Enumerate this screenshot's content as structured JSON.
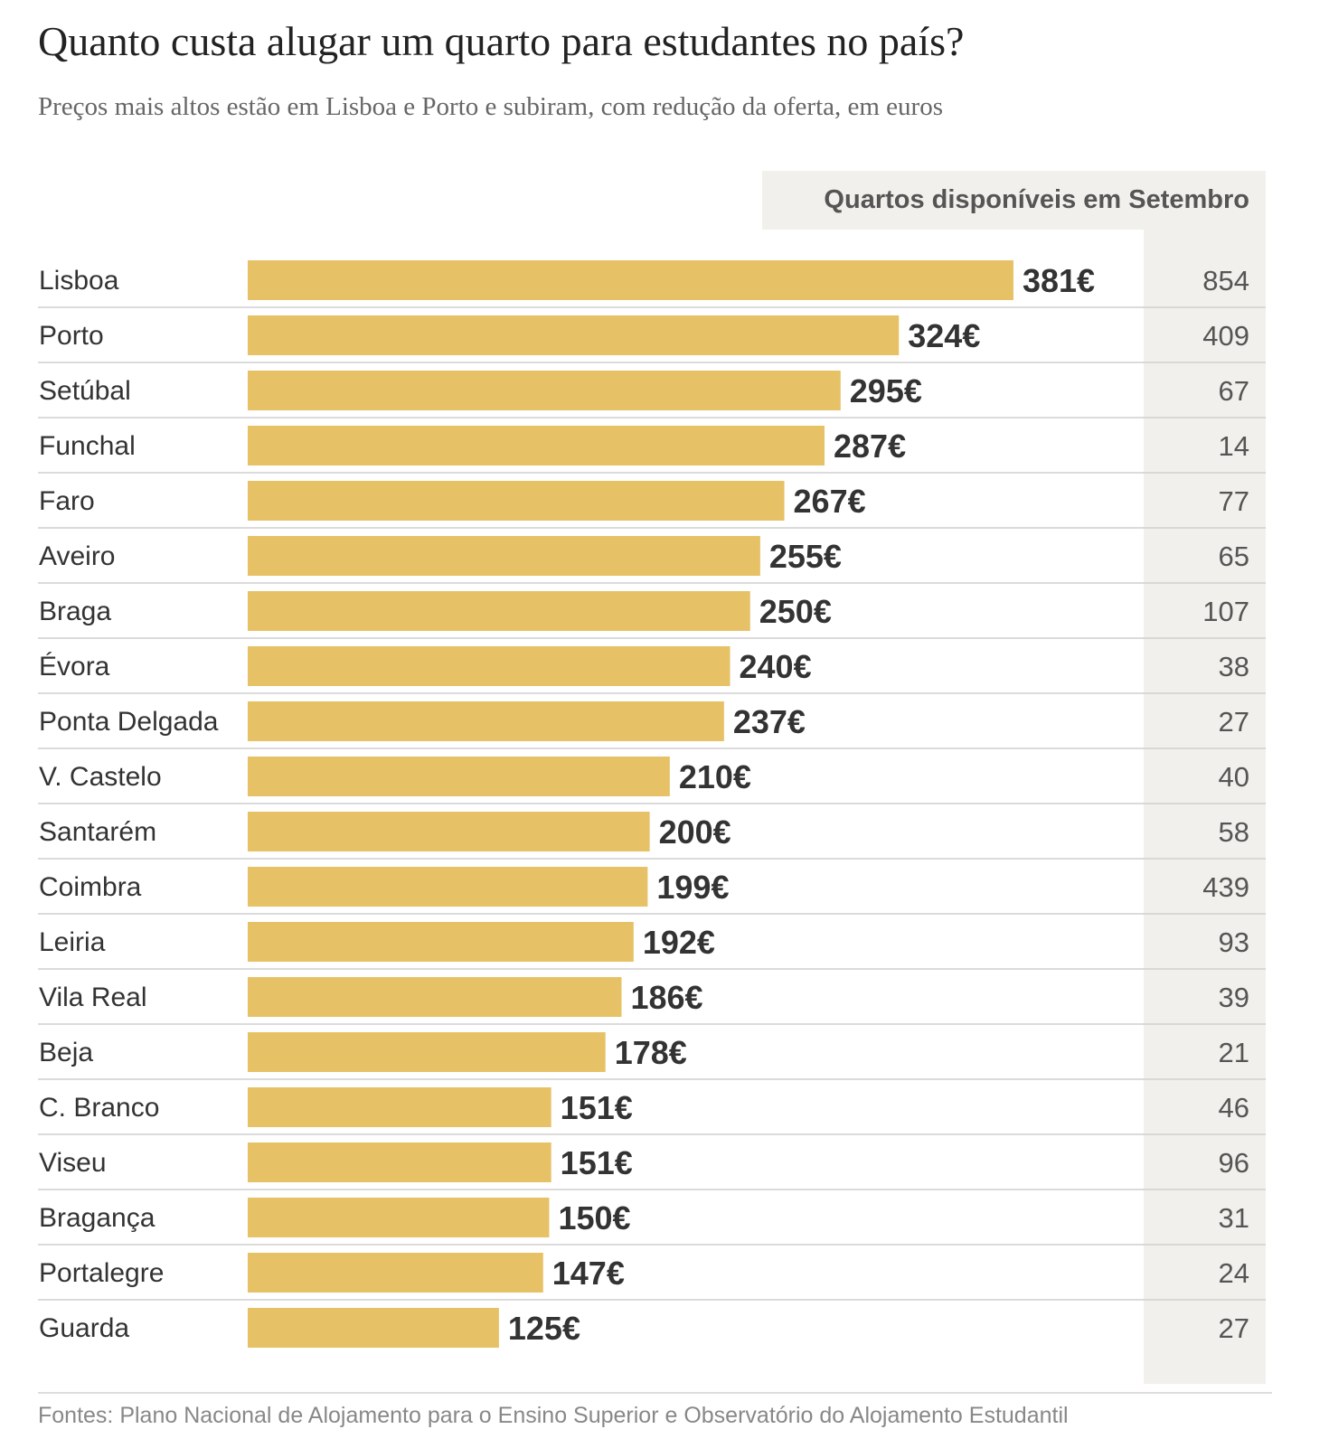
{
  "title": "Quanto custa alugar um quarto para estudantes no país?",
  "subtitle": "Preços mais altos estão em Lisboa e Porto e subiram, com redução da oferta, em euros",
  "column_header": "Quartos disponíveis em Setembro",
  "source": "Fontes: Plano Nacional de Alojamento para o Ensino Superior e Observatório do Alojamento Estudantil",
  "colors": {
    "bar": "#e6c166",
    "panel": "#f2f0ec",
    "separator": "#cfcfcf",
    "text": "#333333"
  },
  "chart_data": {
    "type": "bar",
    "orientation": "horizontal",
    "value_suffix": "€",
    "categories": [
      "Lisboa",
      "Porto",
      "Setúbal",
      "Funchal",
      "Faro",
      "Aveiro",
      "Braga",
      "Évora",
      "Ponta Delgada",
      "V. Castelo",
      "Santarém",
      "Coimbra",
      "Leiria",
      "Vila Real",
      "Beja",
      "C. Branco",
      "Viseu",
      "Bragança",
      "Portalegre",
      "Guarda"
    ],
    "values": [
      381,
      324,
      295,
      287,
      267,
      255,
      250,
      240,
      237,
      210,
      200,
      199,
      192,
      186,
      178,
      151,
      151,
      150,
      147,
      125
    ],
    "rooms_available": [
      854,
      409,
      67,
      14,
      77,
      65,
      107,
      38,
      27,
      40,
      58,
      439,
      93,
      39,
      21,
      46,
      96,
      31,
      24,
      27
    ],
    "grid": false
  }
}
